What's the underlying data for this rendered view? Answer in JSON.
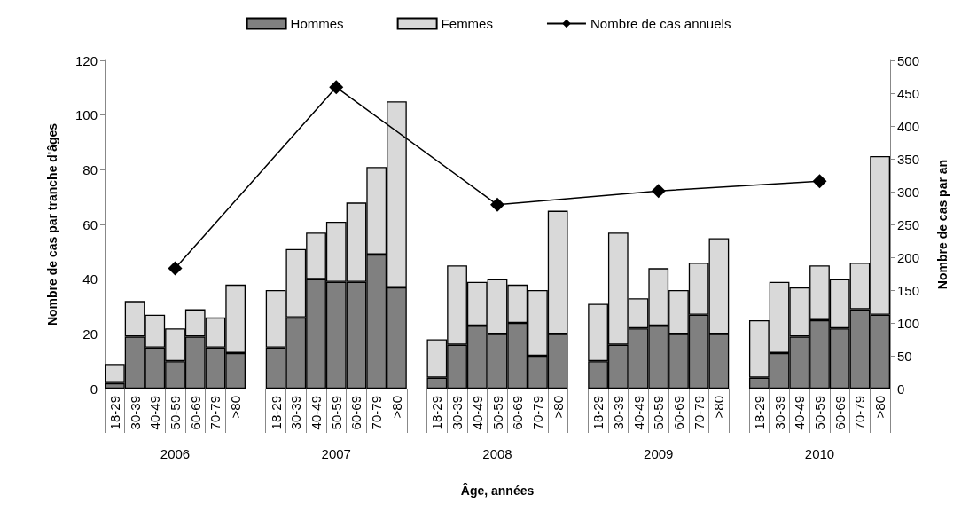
{
  "chart_data": {
    "type": "bar",
    "stacked": true,
    "xlabel": "Âge, années",
    "ylabel": "Nombre de cas par tranche d'âges",
    "y2label": "Nombre de cas par an",
    "categories": [
      "18-29",
      "30-39",
      "40-49",
      "50-59",
      "60-69",
      "70-79",
      ">80",
      null,
      "18-29",
      "30-39",
      "40-49",
      "50-59",
      "60-69",
      "70-79",
      ">80",
      null,
      "18-29",
      "30-39",
      "40-49",
      "50-59",
      "60-69",
      "70-79",
      ">80",
      null,
      "18-29",
      "30-39",
      "40-49",
      "50-59",
      "60-69",
      "70-79",
      ">80",
      null,
      "18-29",
      "30-39",
      "40-49",
      "50-59",
      "60-69",
      "70-79",
      ">80"
    ],
    "annotations": [
      "2006",
      "2007",
      "2008",
      "2009",
      "2010"
    ],
    "series": [
      {
        "name": "Hommes",
        "color": "#808080",
        "values": [
          2,
          19,
          15,
          10,
          19,
          15,
          13,
          null,
          15,
          26,
          40,
          39,
          39,
          49,
          37,
          null,
          4,
          16,
          23,
          20,
          24,
          12,
          20,
          null,
          10,
          16,
          22,
          23,
          20,
          27,
          20,
          null,
          4,
          13,
          19,
          25,
          22,
          29,
          27
        ]
      },
      {
        "name": "Femmes",
        "color": "#d9d9d9",
        "values": [
          7,
          13,
          12,
          12,
          10,
          11,
          25,
          null,
          21,
          25,
          17,
          22,
          29,
          32,
          68,
          null,
          14,
          29,
          16,
          20,
          14,
          24,
          45,
          null,
          21,
          41,
          11,
          21,
          16,
          19,
          35,
          null,
          21,
          26,
          18,
          20,
          18,
          17,
          58
        ]
      },
      {
        "name": "Nombre de cas annuels",
        "type": "line",
        "axis": "y2",
        "color": "#000000",
        "marker": "diamond",
        "values": [
          null,
          null,
          null,
          183,
          null,
          null,
          null,
          null,
          null,
          null,
          null,
          459,
          null,
          null,
          null,
          null,
          null,
          null,
          null,
          280,
          null,
          null,
          null,
          null,
          null,
          null,
          null,
          301,
          null,
          null,
          null,
          null,
          null,
          null,
          null,
          316,
          null,
          null,
          null
        ]
      }
    ],
    "ylim": [
      0,
      120
    ],
    "yticks": [
      0,
      20,
      40,
      60,
      80,
      100,
      120
    ],
    "y2lim": [
      0,
      500
    ],
    "y2ticks": [
      0,
      50,
      100,
      150,
      200,
      250,
      300,
      350,
      400,
      450,
      500
    ],
    "grid": false,
    "legend": "top"
  }
}
